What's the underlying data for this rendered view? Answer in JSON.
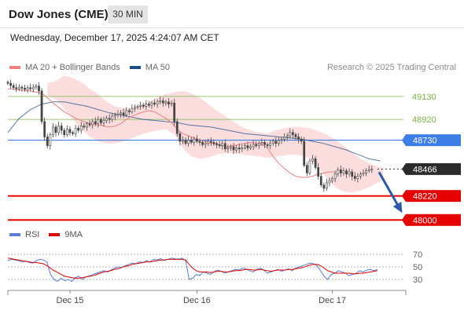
{
  "header": {
    "instrument": "Dow Jones (CME)",
    "interval": "30 MIN",
    "timestamp": "Wednesday, December 17, 2025 4:24:07 AM CET"
  },
  "legend": {
    "items": [
      {
        "label": "MA 20 + Bollinger Bands",
        "color": "#f08080"
      },
      {
        "label": "MA 50",
        "color": "#1f4e8c"
      }
    ],
    "copyright": "Research © 2025 Trading Central"
  },
  "rsi_legend": {
    "items": [
      {
        "label": "RSI",
        "color": "#5b7fd6"
      },
      {
        "label": "9MA",
        "color": "#e00000"
      }
    ]
  },
  "colors": {
    "support": "#e60000",
    "resistance": "#7ab648",
    "pivot": "#3d7ee6",
    "last_price_bg": "#2b2b2b",
    "candle": "#444444",
    "bollinger_fill": "#fbd7d7",
    "ma20": "#f08080",
    "ma50": "#1f4e8c",
    "forecast_arrow": "#2a5aa8"
  },
  "chart_data": {
    "type": "candlestick",
    "price_range": [
      47930,
      49330
    ],
    "levels": [
      {
        "value": 49130,
        "label": "49130",
        "kind": "resistance"
      },
      {
        "value": 48920,
        "label": "48920",
        "kind": "resistance"
      },
      {
        "value": 48730,
        "label": "48730",
        "kind": "pivot"
      },
      {
        "value": 48466,
        "label": "48466",
        "kind": "last_price"
      },
      {
        "value": 48220,
        "label": "48220",
        "kind": "support"
      },
      {
        "value": 48000,
        "label": "48000",
        "kind": "support"
      }
    ],
    "x_labels": [
      {
        "label": "Dec 15",
        "index": 22
      },
      {
        "label": "Dec 16",
        "index": 67
      },
      {
        "label": "Dec 17",
        "index": 115
      }
    ],
    "closes": [
      49250,
      49230,
      49210,
      49200,
      49215,
      49205,
      49195,
      49210,
      49200,
      49215,
      49225,
      49180,
      48900,
      48760,
      48680,
      48780,
      48850,
      48800,
      48860,
      48820,
      48780,
      48830,
      48800,
      48790,
      48840,
      48820,
      48860,
      48850,
      48880,
      48870,
      48900,
      48880,
      48920,
      48890,
      48910,
      48930,
      48920,
      48950,
      48960,
      48970,
      48980,
      48960,
      49000,
      48990,
      49020,
      49030,
      49040,
      49050,
      49040,
      49060,
      49050,
      49070,
      49060,
      49080,
      49090,
      49070,
      49080,
      49060,
      49070,
      48900,
      48790,
      48720,
      48730,
      48700,
      48730,
      48710,
      48740,
      48720,
      48710,
      48690,
      48700,
      48720,
      48710,
      48700,
      48690,
      48680,
      48700,
      48650,
      48660,
      48670,
      48640,
      48660,
      48650,
      48660,
      48680,
      48660,
      48670,
      48690,
      48680,
      48700,
      48710,
      48690,
      48680,
      48700,
      48720,
      48700,
      48730,
      48740,
      48760,
      48770,
      48800,
      48780,
      48760,
      48740,
      48720,
      48500,
      48430,
      48540,
      48560,
      48480,
      48400,
      48320,
      48290,
      48340,
      48360,
      48380,
      48420,
      48460,
      48430,
      48450,
      48420,
      48440,
      48400,
      48380,
      48400,
      48420,
      48430,
      48450,
      48460,
      48466
    ],
    "x_count": 132,
    "ma20": [
      49200,
      49195,
      49190,
      49185,
      49180,
      49170,
      49160,
      49120,
      49070,
      49030,
      48990,
      48960,
      48930,
      48910,
      48890,
      48880,
      48870,
      48860,
      48850,
      48860,
      48880,
      48920,
      48950,
      48970,
      48990,
      49000,
      48990,
      48960,
      48930,
      48890,
      48830,
      48790,
      48770,
      48750,
      48730,
      48720,
      48700,
      48690,
      48680,
      48670,
      48680,
      48690,
      48700,
      48710,
      48700,
      48690,
      48660,
      48580,
      48520,
      48470,
      48430,
      48400,
      48390,
      48390,
      48400,
      48420,
      48430,
      48440,
      48440
    ],
    "ma20_x": [
      0,
      2,
      4,
      6,
      8,
      10,
      12,
      14,
      16,
      18,
      20,
      22,
      24,
      26,
      28,
      30,
      32,
      34,
      36,
      38,
      40,
      42,
      44,
      46,
      48,
      50,
      52,
      54,
      56,
      58,
      60,
      62,
      64,
      66,
      68,
      70,
      72,
      74,
      76,
      78,
      80,
      82,
      84,
      86,
      88,
      90,
      92,
      94,
      96,
      98,
      100,
      102,
      104,
      106,
      108,
      110,
      112,
      114,
      116
    ],
    "bb_upper": [
      49250,
      49270,
      49320,
      49300,
      49260,
      49200,
      49150,
      49080,
      49040,
      49020,
      49020,
      49040,
      49080,
      49120,
      49150,
      49170,
      49180,
      49160,
      49120,
      49060,
      49000,
      48950,
      48900,
      48850,
      48820,
      48800,
      48790,
      48820,
      48840,
      48850,
      48850,
      48840,
      48810,
      48780,
      48740,
      48680,
      48620,
      48560,
      48520,
      48490,
      48470
    ],
    "bb_lower": [
      49140,
      49100,
      49020,
      48920,
      48830,
      48760,
      48720,
      48700,
      48700,
      48720,
      48750,
      48780,
      48800,
      48820,
      48830,
      48780,
      48660,
      48580,
      48560,
      48570,
      48600,
      48610,
      48610,
      48600,
      48590,
      48580,
      48570,
      48580,
      48590,
      48600,
      48590,
      48560,
      48480,
      48380,
      48300,
      48260,
      48250,
      48270,
      48300,
      48340,
      48370
    ],
    "bb_x": [
      14,
      17,
      20,
      23,
      26,
      29,
      32,
      35,
      38,
      41,
      44,
      47,
      50,
      53,
      56,
      59,
      62,
      65,
      68,
      71,
      74,
      77,
      80,
      83,
      86,
      89,
      92,
      95,
      98,
      101,
      104,
      107,
      110,
      113,
      116,
      119,
      122,
      125,
      128,
      131,
      133
    ],
    "ma50": [
      48800,
      48930,
      49010,
      49060,
      49080,
      49080,
      49060,
      49040,
      49010,
      48980,
      48960,
      48940,
      48920,
      48910,
      48900,
      48890,
      48870,
      48860,
      48850,
      48830,
      48810,
      48790,
      48780,
      48770,
      48760,
      48750,
      48740,
      48720,
      48700,
      48670,
      48640,
      48600,
      48560,
      48540
    ],
    "ma50_x": [
      0,
      4,
      8,
      12,
      16,
      20,
      24,
      28,
      32,
      36,
      40,
      44,
      48,
      52,
      56,
      60,
      64,
      68,
      72,
      76,
      80,
      84,
      88,
      92,
      96,
      100,
      104,
      108,
      112,
      116,
      120,
      124,
      128,
      132
    ],
    "forecast": {
      "from": 48466,
      "to": 48040
    },
    "rsi": {
      "levels": [
        70,
        50,
        30
      ],
      "range": [
        15,
        85
      ],
      "rsi": [
        60,
        62,
        61,
        60,
        58,
        59,
        57,
        56,
        60,
        62,
        61,
        58,
        38,
        30,
        27,
        32,
        28,
        30,
        27,
        33,
        35,
        30,
        34,
        36,
        38,
        40,
        42,
        44,
        42,
        45,
        48,
        50,
        49,
        52,
        54,
        56,
        55,
        58,
        57,
        60,
        58,
        62,
        61,
        63,
        60,
        62,
        64,
        63,
        62,
        64,
        60,
        30,
        32,
        38,
        36,
        42,
        40,
        38,
        42,
        45,
        43,
        40,
        42,
        44,
        46,
        45,
        48,
        47,
        44,
        42,
        46,
        48,
        45,
        40,
        42,
        44,
        46,
        43,
        45,
        47,
        44,
        48,
        50,
        52,
        54,
        56,
        55,
        52,
        44,
        35,
        30,
        38,
        40,
        44,
        42,
        40,
        36,
        38,
        40,
        44,
        42,
        45,
        46,
        44,
        46
      ],
      "ma9": [
        64,
        63,
        62,
        61,
        60,
        59,
        58,
        57,
        57,
        56,
        55,
        52,
        48,
        44,
        41,
        38,
        35,
        34,
        33,
        32,
        32,
        33,
        34,
        35,
        36,
        38,
        40,
        42,
        43,
        44,
        46,
        47,
        49,
        51,
        52,
        54,
        55,
        56,
        57,
        58,
        58,
        59,
        60,
        61,
        61,
        62,
        62,
        62,
        62,
        62,
        61,
        54,
        48,
        44,
        42,
        42,
        42,
        41,
        42,
        43,
        43,
        42,
        42,
        43,
        44,
        44,
        45,
        46,
        46,
        45,
        45,
        46,
        45,
        44,
        43,
        44,
        45,
        45,
        45,
        46,
        46,
        47,
        48,
        49,
        51,
        53,
        54,
        54,
        52,
        48,
        44,
        42,
        40,
        40,
        40,
        40,
        40,
        39,
        39,
        40,
        40,
        41,
        42,
        43,
        44
      ]
    }
  }
}
